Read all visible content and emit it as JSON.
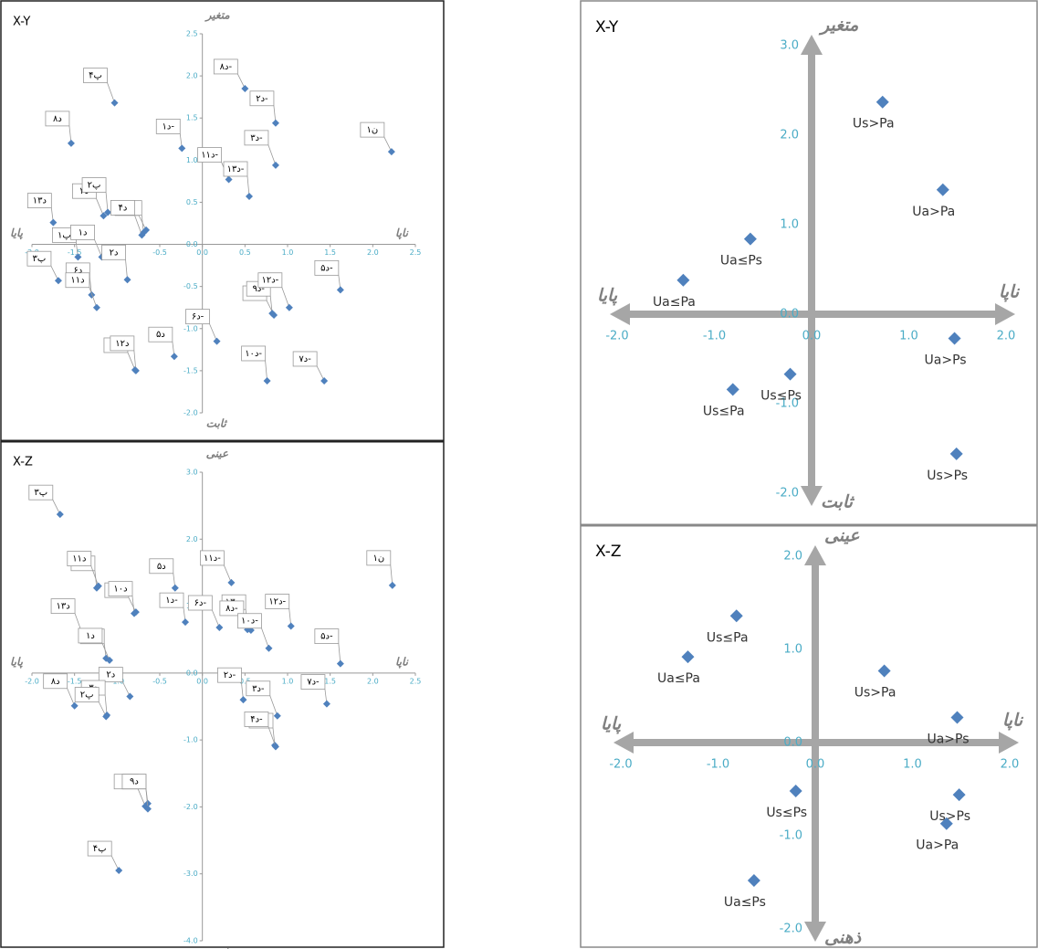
{
  "chart_data": [
    {
      "type": "scatter",
      "title": "X-Y",
      "top_label": "متغیر",
      "bottom_label": "ثابت",
      "left_label": "پایا",
      "right_label": "ناپا",
      "color": "#4f81bd",
      "xlim": [
        -2,
        2.5
      ],
      "ylim": [
        -2,
        2.5
      ],
      "xticks": [
        {
          "value": -2,
          "label": "-2.0"
        },
        -1.5,
        {
          "value": -1,
          "label": "-1.0"
        },
        -0.5,
        {
          "value": 0,
          "label": "0.0"
        },
        0.5,
        {
          "value": 1,
          "label": "1.0"
        },
        1.5,
        {
          "value": 2,
          "label": "2.0"
        },
        2.5
      ],
      "yticks": [
        {
          "value": -2,
          "label": "-2.0"
        },
        -1.5,
        {
          "value": -1,
          "label": "-1.0"
        },
        -0.5,
        {
          "value": 0,
          "label": "0.0"
        },
        0.5,
        {
          "value": 1,
          "label": "1.0"
        },
        1.5,
        {
          "value": 2,
          "label": "2.0"
        },
        2.5
      ],
      "point_labels": [
        "د۸-",
        "د۲-",
        "د۳-",
        "د۱-",
        "د۱۱-",
        "د۱۳-",
        "ن۱",
        "د۸",
        "پ۴",
        "د۱۳",
        "د۳",
        "پ۲",
        "د۷",
        "د۹",
        "د۴",
        "پ۱",
        "د۱",
        "د۲",
        "پ۳",
        "د۶",
        "د۱۱",
        "د۵",
        "د۱۰",
        "د۱۲",
        "د۴-",
        "د۹-",
        "د۱۲-",
        "د۵-",
        "د۶-",
        "د۱۰-",
        "د۷-"
      ],
      "x": [
        0.5,
        0.86,
        0.86,
        -0.24,
        0.31,
        0.55,
        2.22,
        -1.54,
        -1.03,
        -1.75,
        -1.16,
        -1.11,
        -0.66,
        -0.69,
        -0.71,
        -1.46,
        -1.18,
        -0.88,
        -1.69,
        -1.3,
        -1.24,
        -0.33,
        -0.79,
        -0.78,
        0.84,
        0.82,
        1.02,
        1.62,
        0.17,
        0.76,
        1.43
      ],
      "values": [
        1.85,
        1.44,
        0.94,
        1.14,
        0.77,
        0.57,
        1.1,
        1.2,
        1.68,
        0.26,
        0.34,
        0.38,
        0.17,
        0.14,
        0.11,
        -0.15,
        -0.15,
        -0.42,
        -0.43,
        -0.6,
        -0.75,
        -1.33,
        -1.49,
        -1.5,
        -0.84,
        -0.82,
        -0.75,
        -0.54,
        -1.15,
        -1.62,
        -1.62
      ]
    },
    {
      "type": "scatter",
      "title": "X-Z",
      "top_label": "عینی",
      "bottom_label": "ذهنی",
      "left_label": "پایا",
      "right_label": "ناپا",
      "color": "#4f81bd",
      "xlim": [
        -2,
        2.5
      ],
      "ylim": [
        -4,
        3
      ],
      "xticks": [
        {
          "value": -2,
          "label": "-2.0"
        },
        -1.5,
        {
          "value": -1,
          "label": "-1.0"
        },
        -0.5,
        {
          "value": 0,
          "label": "0.0"
        },
        0.5,
        {
          "value": 1,
          "label": "1.0"
        },
        1.5,
        {
          "value": 2,
          "label": "2.0"
        },
        2.5
      ],
      "yticks": [
        {
          "value": -4,
          "label": "-4.0"
        },
        {
          "value": -3,
          "label": "-3.0"
        },
        {
          "value": -2,
          "label": "-2.0"
        },
        {
          "value": -1,
          "label": "-1.0"
        },
        {
          "value": 0,
          "label": "0.0"
        },
        {
          "value": 1,
          "label": "1.0"
        },
        {
          "value": 2,
          "label": "2.0"
        },
        {
          "value": 3,
          "label": "3.0"
        }
      ],
      "point_labels": [
        "پ۳",
        "د۶",
        "د۱۱",
        "د۵",
        "د۱۱-",
        "ن۱",
        "د۱۲",
        "د۱۰",
        "د۱۳",
        "د۱-",
        "د۶-",
        "د۱۳-",
        "د۸-",
        "د۱۲-",
        "د۱۰-",
        "پ۱",
        "د۱",
        "د۵-",
        "د۲",
        "د۲-",
        "د۳-",
        "د۷-",
        "د۸",
        "د۳",
        "پ۲",
        "د۹-",
        "د۴-",
        "د۷",
        "د۴",
        "د۹",
        "پ۴"
      ],
      "x": [
        -1.67,
        -1.24,
        -1.22,
        -0.32,
        0.34,
        2.23,
        -0.78,
        -0.8,
        -1.41,
        -0.2,
        0.2,
        0.53,
        0.57,
        1.04,
        0.78,
        -1.13,
        -1.09,
        1.62,
        -0.85,
        0.48,
        0.88,
        1.46,
        -1.5,
        -1.12,
        -1.13,
        0.85,
        0.86,
        -0.64,
        -0.67,
        -0.64,
        -0.98
      ],
      "values": [
        2.37,
        1.27,
        1.3,
        1.27,
        1.35,
        1.31,
        0.91,
        0.89,
        0.59,
        0.76,
        0.68,
        0.65,
        0.64,
        0.7,
        0.37,
        0.22,
        0.19,
        0.14,
        -0.35,
        -0.4,
        -0.64,
        -0.46,
        -0.49,
        -0.63,
        -0.65,
        -1.08,
        -1.1,
        -1.95,
        -1.99,
        -2.03,
        -2.95
      ]
    },
    {
      "type": "scatter",
      "title": "X-Y",
      "top_label": "متغیر",
      "bottom_label": "ثابت",
      "left_label": "پایا",
      "right_label": "ناپا",
      "color": "#4f81bd",
      "xlim": [
        -2,
        2
      ],
      "ylim": [
        -2,
        3
      ],
      "xticks": [
        {
          "value": -2,
          "label": "-2.0"
        },
        {
          "value": -1,
          "label": "-1.0"
        },
        {
          "value": 0,
          "label": "0.0"
        },
        {
          "value": 1,
          "label": "1.0"
        },
        {
          "value": 2,
          "label": "2.0"
        }
      ],
      "yticks": [
        {
          "value": -2,
          "label": "-2.0"
        },
        {
          "value": -1,
          "label": "-1.0"
        },
        {
          "value": 0,
          "label": "0.0"
        },
        {
          "value": 1,
          "label": "1.0"
        },
        {
          "value": 2,
          "label": "2.0"
        },
        {
          "value": 3,
          "label": "3.0"
        }
      ],
      "point_labels": [
        "Us>Pa",
        "Ua>Pa",
        "Ua≤Ps",
        "Ua≤Pa",
        "Ua>Ps",
        "Us≤Ps",
        "Us≤Pa",
        "Us>Ps"
      ],
      "x": [
        0.73,
        1.35,
        -0.63,
        -1.32,
        1.47,
        -0.22,
        -0.81,
        1.49
      ],
      "values": [
        2.37,
        1.39,
        0.84,
        0.38,
        -0.27,
        -0.67,
        -0.84,
        -1.56
      ]
    },
    {
      "type": "scatter",
      "title": "X-Z",
      "top_label": "عینی",
      "bottom_label": "ذهنی",
      "left_label": "پایا",
      "right_label": "ناپا",
      "color": "#4f81bd",
      "xlim": [
        -2,
        2
      ],
      "ylim": [
        -2,
        2
      ],
      "xticks": [
        {
          "value": -2,
          "label": "-2.0"
        },
        {
          "value": -1,
          "label": "-1.0"
        },
        {
          "value": 0,
          "label": "0.0"
        },
        {
          "value": 1,
          "label": "1.0"
        },
        {
          "value": 2,
          "label": "2.0"
        }
      ],
      "yticks": [
        {
          "value": -2,
          "label": "-2.0"
        },
        {
          "value": -1,
          "label": "-1.0"
        },
        {
          "value": 0,
          "label": "0.0"
        },
        {
          "value": 1,
          "label": "1.0"
        },
        {
          "value": 2,
          "label": "2.0"
        }
      ],
      "point_labels": [
        "Us≤Pa",
        "Ua≤Pa",
        "Us>Pa",
        "Ua>Ps",
        "Us≤Ps",
        "Us>Ps",
        "Ua>Pa",
        "Ua≤Ps"
      ],
      "x": [
        -0.81,
        -1.31,
        0.71,
        1.46,
        -0.2,
        1.48,
        1.35,
        -0.63
      ],
      "values": [
        1.36,
        0.92,
        0.77,
        0.27,
        -0.52,
        -0.56,
        -0.87,
        -1.48
      ]
    }
  ]
}
